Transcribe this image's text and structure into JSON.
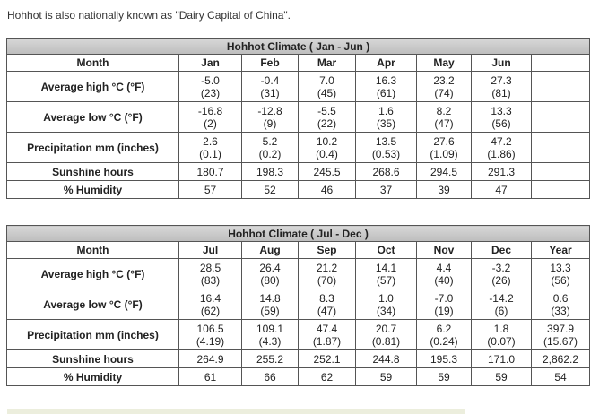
{
  "intro_text": "Hohhot is also nationally known as \"Dairy Capital of China\".",
  "tables": [
    {
      "title": "Hohhot Climate ( Jan - Jun )",
      "header_label": "Month",
      "months": [
        "Jan",
        "Feb",
        "Mar",
        "Apr",
        "May",
        "Jun",
        ""
      ],
      "rows": [
        {
          "label": "Average high °C (°F)",
          "cells": [
            [
              "-5.0",
              "(23)"
            ],
            [
              "-0.4",
              "(31)"
            ],
            [
              "7.0",
              "(45)"
            ],
            [
              "16.3",
              "(61)"
            ],
            [
              "23.2",
              "(74)"
            ],
            [
              "27.3",
              "(81)"
            ],
            [
              "",
              ""
            ]
          ]
        },
        {
          "label": "Average low °C (°F)",
          "cells": [
            [
              "-16.8",
              "(2)"
            ],
            [
              "-12.8",
              "(9)"
            ],
            [
              "-5.5",
              "(22)"
            ],
            [
              "1.6",
              "(35)"
            ],
            [
              "8.2",
              "(47)"
            ],
            [
              "13.3",
              "(56)"
            ],
            [
              "",
              ""
            ]
          ]
        },
        {
          "label": "Precipitation mm (inches)",
          "cells": [
            [
              "2.6",
              "(0.1)"
            ],
            [
              "5.2",
              "(0.2)"
            ],
            [
              "10.2",
              "(0.4)"
            ],
            [
              "13.5",
              "(0.53)"
            ],
            [
              "27.6",
              "(1.09)"
            ],
            [
              "47.2",
              "(1.86)"
            ],
            [
              "",
              ""
            ]
          ]
        },
        {
          "label": "Sunshine hours",
          "cells": [
            [
              "180.7"
            ],
            [
              "198.3"
            ],
            [
              "245.5"
            ],
            [
              "268.6"
            ],
            [
              "294.5"
            ],
            [
              "291.3"
            ],
            [
              ""
            ]
          ]
        },
        {
          "label": "% Humidity",
          "cells": [
            [
              "57"
            ],
            [
              "52"
            ],
            [
              "46"
            ],
            [
              "37"
            ],
            [
              "39"
            ],
            [
              "47"
            ],
            [
              ""
            ]
          ]
        }
      ]
    },
    {
      "title": "Hohhot Climate ( Jul - Dec )",
      "header_label": "Month",
      "months": [
        "Jul",
        "Aug",
        "Sep",
        "Oct",
        "Nov",
        "Dec",
        "Year"
      ],
      "rows": [
        {
          "label": "Average high °C (°F)",
          "cells": [
            [
              "28.5",
              "(83)"
            ],
            [
              "26.4",
              "(80)"
            ],
            [
              "21.2",
              "(70)"
            ],
            [
              "14.1",
              "(57)"
            ],
            [
              "4.4",
              "(40)"
            ],
            [
              "-3.2",
              "(26)"
            ],
            [
              "13.3",
              "(56)"
            ]
          ]
        },
        {
          "label": "Average low °C (°F)",
          "cells": [
            [
              "16.4",
              "(62)"
            ],
            [
              "14.8",
              "(59)"
            ],
            [
              "8.3",
              "(47)"
            ],
            [
              "1.0",
              "(34)"
            ],
            [
              "-7.0",
              "(19)"
            ],
            [
              "-14.2",
              "(6)"
            ],
            [
              "0.6",
              "(33)"
            ]
          ]
        },
        {
          "label": "Precipitation mm (inches)",
          "cells": [
            [
              "106.5",
              "(4.19)"
            ],
            [
              "109.1",
              "(4.3)"
            ],
            [
              "47.4",
              "(1.87)"
            ],
            [
              "20.7",
              "(0.81)"
            ],
            [
              "6.2",
              "(0.24)"
            ],
            [
              "1.8",
              "(0.07)"
            ],
            [
              "397.9",
              "(15.67)"
            ]
          ]
        },
        {
          "label": "Sunshine hours",
          "cells": [
            [
              "264.9"
            ],
            [
              "255.2"
            ],
            [
              "252.1"
            ],
            [
              "244.8"
            ],
            [
              "195.3"
            ],
            [
              "171.0"
            ],
            [
              "2,862.2"
            ]
          ]
        },
        {
          "label": "% Humidity",
          "cells": [
            [
              "61"
            ],
            [
              "66"
            ],
            [
              "62"
            ],
            [
              "59"
            ],
            [
              "59"
            ],
            [
              "59"
            ],
            [
              "54"
            ]
          ]
        }
      ]
    }
  ]
}
